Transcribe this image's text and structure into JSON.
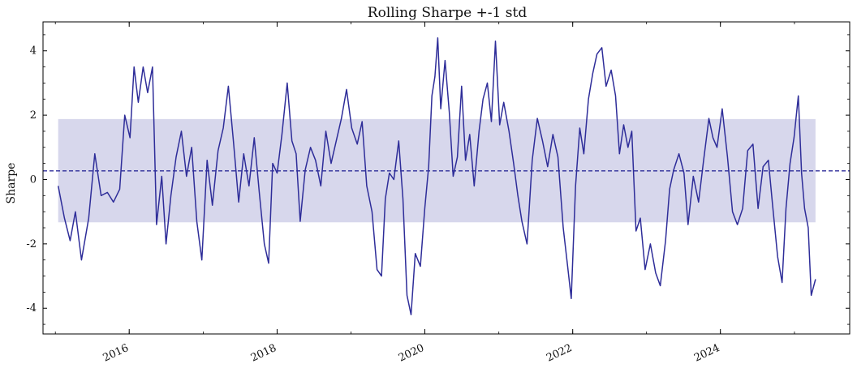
{
  "chart_data": {
    "type": "line",
    "title": "Rolling Sharpe +-1 std",
    "xlabel": "",
    "ylabel": "Sharpe",
    "xlim": [
      "2014-11-01",
      "2025-10-01"
    ],
    "ylim": [
      -4.8,
      4.9
    ],
    "yticks": [
      -4,
      -2,
      0,
      2,
      4
    ],
    "xticks": [
      {
        "date": "2016-01-01",
        "label": "2016"
      },
      {
        "date": "2018-01-01",
        "label": "2018"
      },
      {
        "date": "2020-01-01",
        "label": "2020"
      },
      {
        "date": "2022-01-01",
        "label": "2022"
      },
      {
        "date": "2024-01-01",
        "label": "2024"
      }
    ],
    "grid": false,
    "legend": "none",
    "mean": 0.27,
    "std_band": {
      "x_start": "2015-01-15",
      "x_end": "2025-04-15",
      "lower": -1.33,
      "upper": 1.88
    },
    "colors": {
      "line": "#2e2d99",
      "band": "#c9c9e6",
      "mean_line": "#2e2d99"
    },
    "series": [
      {
        "points": [
          [
            "2015-01-15",
            -0.2
          ],
          [
            "2015-02-15",
            -1.2
          ],
          [
            "2015-03-15",
            -1.9
          ],
          [
            "2015-04-10",
            -1.0
          ],
          [
            "2015-05-10",
            -2.5
          ],
          [
            "2015-06-15",
            -1.2
          ],
          [
            "2015-07-15",
            0.8
          ],
          [
            "2015-08-15",
            -0.5
          ],
          [
            "2015-09-15",
            -0.4
          ],
          [
            "2015-10-15",
            -0.7
          ],
          [
            "2015-11-15",
            -0.3
          ],
          [
            "2015-12-10",
            2.0
          ],
          [
            "2016-01-05",
            1.3
          ],
          [
            "2016-01-25",
            3.5
          ],
          [
            "2016-02-15",
            2.4
          ],
          [
            "2016-03-10",
            3.5
          ],
          [
            "2016-04-01",
            2.7
          ],
          [
            "2016-04-25",
            3.5
          ],
          [
            "2016-05-15",
            -1.4
          ],
          [
            "2016-06-10",
            0.1
          ],
          [
            "2016-07-01",
            -2.0
          ],
          [
            "2016-07-25",
            -0.5
          ],
          [
            "2016-08-20",
            0.7
          ],
          [
            "2016-09-15",
            1.5
          ],
          [
            "2016-10-10",
            0.1
          ],
          [
            "2016-11-05",
            1.0
          ],
          [
            "2016-11-30",
            -1.3
          ],
          [
            "2016-12-25",
            -2.5
          ],
          [
            "2017-01-20",
            0.6
          ],
          [
            "2017-02-15",
            -0.8
          ],
          [
            "2017-03-15",
            0.9
          ],
          [
            "2017-04-10",
            1.6
          ],
          [
            "2017-05-05",
            2.9
          ],
          [
            "2017-05-30",
            1.2
          ],
          [
            "2017-06-25",
            -0.7
          ],
          [
            "2017-07-20",
            0.8
          ],
          [
            "2017-08-15",
            -0.2
          ],
          [
            "2017-09-10",
            1.3
          ],
          [
            "2017-10-05",
            -0.4
          ],
          [
            "2017-10-30",
            -2.0
          ],
          [
            "2017-11-20",
            -2.6
          ],
          [
            "2017-12-10",
            0.5
          ],
          [
            "2018-01-01",
            0.2
          ],
          [
            "2018-01-25",
            1.4
          ],
          [
            "2018-02-20",
            3.0
          ],
          [
            "2018-03-15",
            1.2
          ],
          [
            "2018-04-05",
            0.8
          ],
          [
            "2018-04-25",
            -1.3
          ],
          [
            "2018-05-20",
            0.3
          ],
          [
            "2018-06-15",
            1.0
          ],
          [
            "2018-07-10",
            0.6
          ],
          [
            "2018-08-05",
            -0.2
          ],
          [
            "2018-08-30",
            1.5
          ],
          [
            "2018-09-25",
            0.5
          ],
          [
            "2018-10-20",
            1.2
          ],
          [
            "2018-11-15",
            1.9
          ],
          [
            "2018-12-10",
            2.8
          ],
          [
            "2019-01-05",
            1.6
          ],
          [
            "2019-02-01",
            1.1
          ],
          [
            "2019-02-25",
            1.8
          ],
          [
            "2019-03-20",
            -0.2
          ],
          [
            "2019-04-15",
            -1.0
          ],
          [
            "2019-05-10",
            -2.8
          ],
          [
            "2019-06-01",
            -3.0
          ],
          [
            "2019-06-20",
            -0.6
          ],
          [
            "2019-07-10",
            0.2
          ],
          [
            "2019-08-01",
            0.0
          ],
          [
            "2019-08-25",
            1.2
          ],
          [
            "2019-09-15",
            -0.6
          ],
          [
            "2019-10-05",
            -3.6
          ],
          [
            "2019-10-25",
            -4.2
          ],
          [
            "2019-11-15",
            -2.3
          ],
          [
            "2019-12-10",
            -2.7
          ],
          [
            "2020-01-01",
            -0.9
          ],
          [
            "2020-01-20",
            0.4
          ],
          [
            "2020-02-05",
            2.6
          ],
          [
            "2020-02-20",
            3.2
          ],
          [
            "2020-03-05",
            4.4
          ],
          [
            "2020-03-20",
            2.2
          ],
          [
            "2020-04-10",
            3.7
          ],
          [
            "2020-05-01",
            2.1
          ],
          [
            "2020-05-20",
            0.1
          ],
          [
            "2020-06-10",
            0.7
          ],
          [
            "2020-07-01",
            2.9
          ],
          [
            "2020-07-20",
            0.6
          ],
          [
            "2020-08-10",
            1.4
          ],
          [
            "2020-09-01",
            -0.2
          ],
          [
            "2020-09-25",
            1.5
          ],
          [
            "2020-10-15",
            2.5
          ],
          [
            "2020-11-05",
            3.0
          ],
          [
            "2020-11-25",
            1.8
          ],
          [
            "2020-12-15",
            4.3
          ],
          [
            "2021-01-05",
            1.7
          ],
          [
            "2021-01-25",
            2.4
          ],
          [
            "2021-02-20",
            1.5
          ],
          [
            "2021-03-15",
            0.5
          ],
          [
            "2021-04-05",
            -0.5
          ],
          [
            "2021-04-25",
            -1.3
          ],
          [
            "2021-05-20",
            -2.0
          ],
          [
            "2021-06-15",
            0.6
          ],
          [
            "2021-07-10",
            1.9
          ],
          [
            "2021-08-05",
            1.2
          ],
          [
            "2021-08-30",
            0.4
          ],
          [
            "2021-09-25",
            1.4
          ],
          [
            "2021-10-20",
            0.7
          ],
          [
            "2021-11-15",
            -1.5
          ],
          [
            "2021-12-05",
            -2.6
          ],
          [
            "2021-12-25",
            -3.7
          ],
          [
            "2022-01-15",
            -0.2
          ],
          [
            "2022-02-05",
            1.6
          ],
          [
            "2022-02-25",
            0.8
          ],
          [
            "2022-03-20",
            2.5
          ],
          [
            "2022-04-10",
            3.3
          ],
          [
            "2022-05-01",
            3.9
          ],
          [
            "2022-05-25",
            4.1
          ],
          [
            "2022-06-15",
            2.9
          ],
          [
            "2022-07-10",
            3.4
          ],
          [
            "2022-08-01",
            2.6
          ],
          [
            "2022-08-20",
            0.8
          ],
          [
            "2022-09-10",
            1.7
          ],
          [
            "2022-10-01",
            1.0
          ],
          [
            "2022-10-20",
            1.5
          ],
          [
            "2022-11-10",
            -1.6
          ],
          [
            "2022-12-01",
            -1.2
          ],
          [
            "2022-12-25",
            -2.8
          ],
          [
            "2023-01-20",
            -2.0
          ],
          [
            "2023-02-15",
            -2.9
          ],
          [
            "2023-03-10",
            -3.3
          ],
          [
            "2023-04-05",
            -1.9
          ],
          [
            "2023-04-25",
            -0.3
          ],
          [
            "2023-05-15",
            0.3
          ],
          [
            "2023-06-10",
            0.8
          ],
          [
            "2023-07-05",
            0.2
          ],
          [
            "2023-07-25",
            -1.4
          ],
          [
            "2023-08-20",
            0.1
          ],
          [
            "2023-09-15",
            -0.7
          ],
          [
            "2023-10-10",
            0.6
          ],
          [
            "2023-11-05",
            1.9
          ],
          [
            "2023-11-25",
            1.3
          ],
          [
            "2023-12-15",
            1.0
          ],
          [
            "2024-01-10",
            2.2
          ],
          [
            "2024-02-05",
            0.7
          ],
          [
            "2024-03-01",
            -1.0
          ],
          [
            "2024-03-25",
            -1.4
          ],
          [
            "2024-04-20",
            -0.9
          ],
          [
            "2024-05-15",
            0.9
          ],
          [
            "2024-06-10",
            1.1
          ],
          [
            "2024-07-05",
            -0.9
          ],
          [
            "2024-07-30",
            0.4
          ],
          [
            "2024-08-25",
            0.6
          ],
          [
            "2024-09-15",
            -0.8
          ],
          [
            "2024-10-10",
            -2.4
          ],
          [
            "2024-11-01",
            -3.2
          ],
          [
            "2024-11-20",
            -0.9
          ],
          [
            "2024-12-10",
            0.5
          ],
          [
            "2024-12-30",
            1.3
          ],
          [
            "2025-01-20",
            2.6
          ],
          [
            "2025-02-05",
            0.2
          ],
          [
            "2025-02-20",
            -0.9
          ],
          [
            "2025-03-10",
            -1.5
          ],
          [
            "2025-03-25",
            -3.6
          ],
          [
            "2025-04-15",
            -3.1
          ]
        ]
      }
    ]
  }
}
